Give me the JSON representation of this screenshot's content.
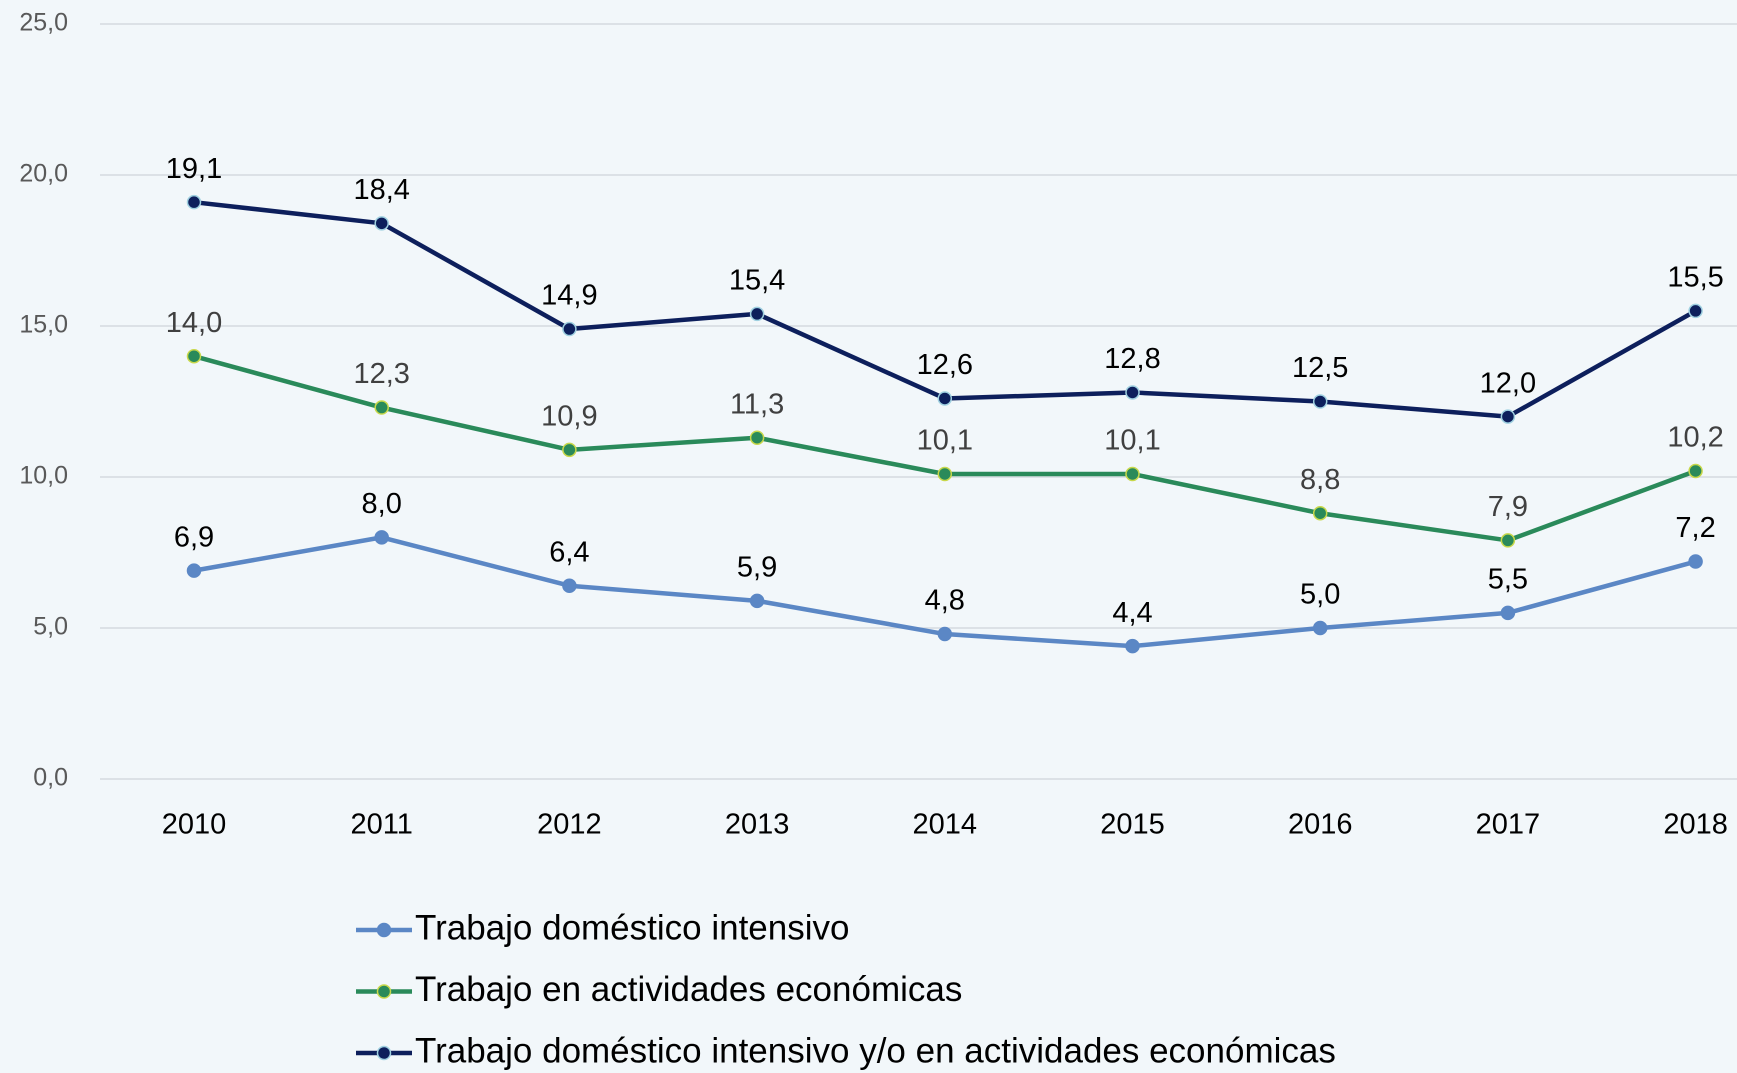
{
  "chart_data": {
    "type": "line",
    "x": [
      "2010",
      "2011",
      "2012",
      "2013",
      "2014",
      "2015",
      "2016",
      "2017",
      "2018"
    ],
    "ylim": [
      0,
      25
    ],
    "yticks": [
      {
        "value": 0,
        "label": "0,0"
      },
      {
        "value": 5,
        "label": "5,0"
      },
      {
        "value": 10,
        "label": "10,0"
      },
      {
        "value": 15,
        "label": "15,0"
      },
      {
        "value": 20,
        "label": "20,0"
      },
      {
        "value": 25,
        "label": "25,0"
      }
    ],
    "grid": true,
    "legend": "bottom",
    "series": [
      {
        "name": "Trabajo doméstico intensivo",
        "color": "#5b87c5",
        "values": [
          6.9,
          8.0,
          6.4,
          5.9,
          4.8,
          4.4,
          5.0,
          5.5,
          7.2
        ],
        "value_labels": [
          "6,9",
          "8,0",
          "6,4",
          "5,9",
          "4,8",
          "4,4",
          "5,0",
          "5,5",
          "7,2"
        ]
      },
      {
        "name": "Trabajo en actividades económicas",
        "color": "#2a8a5a",
        "values": [
          14.0,
          12.3,
          10.9,
          11.3,
          10.1,
          10.1,
          8.8,
          7.9,
          10.2
        ],
        "value_labels": [
          "14,0",
          "12,3",
          "10,9",
          "11,3",
          "10,1",
          "10,1",
          "8,8",
          "7,9",
          "10,2"
        ]
      },
      {
        "name": "Trabajo doméstico intensivo y/o en actividades económicas",
        "color": "#0d1f5c",
        "values": [
          19.1,
          18.4,
          14.9,
          15.4,
          12.6,
          12.8,
          12.5,
          12.0,
          15.5
        ],
        "value_labels": [
          "19,1",
          "18,4",
          "14,9",
          "15,4",
          "12,6",
          "12,8",
          "12,5",
          "12,0",
          "15,5"
        ]
      }
    ]
  }
}
